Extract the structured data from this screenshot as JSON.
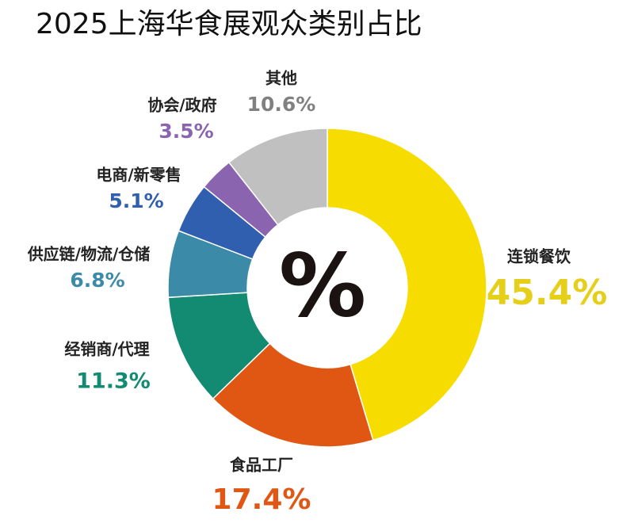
{
  "chart_data": {
    "type": "donut",
    "title": "2025上海华食展观众类别占比",
    "center_label": "%",
    "categories": [
      "连锁餐饮",
      "食品工厂",
      "经销商/代理",
      "供应链/物流/仓储",
      "电商/新零售",
      "协会/政府",
      "其他"
    ],
    "values": [
      45.4,
      17.4,
      11.3,
      6.8,
      5.1,
      3.5,
      10.6
    ],
    "value_labels": [
      "45.4%",
      "17.4%",
      "11.3%",
      "6.8%",
      "5.1%",
      "3.5%",
      "10.6%"
    ],
    "colors": [
      "#f7dc00",
      "#e05713",
      "#138a72",
      "#3a8aa8",
      "#2f5fae",
      "#8a64ae",
      "#c0c0c0"
    ],
    "label_colors": [
      "#e6cf1a",
      "#e05713",
      "#138a72",
      "#3a8aa8",
      "#2f5fae",
      "#8a64ae",
      "#808080"
    ]
  }
}
